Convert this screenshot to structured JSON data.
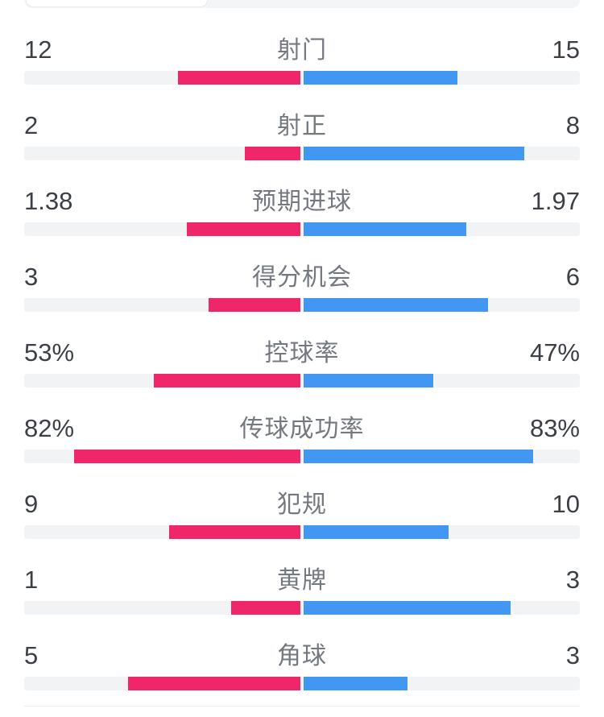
{
  "colors": {
    "home": "#F0266B",
    "away": "#4197F2",
    "track": "#F2F3F5",
    "value_text": "#3C4046",
    "label_text": "#74797F"
  },
  "stats": [
    {
      "label": "射门",
      "home": "12",
      "away": "15",
      "home_bar_pct": 44.4,
      "away_bar_pct": 55.6
    },
    {
      "label": "射正",
      "home": "2",
      "away": "8",
      "home_bar_pct": 20,
      "away_bar_pct": 80
    },
    {
      "label": "预期进球",
      "home": "1.38",
      "away": "1.97",
      "home_bar_pct": 41.2,
      "away_bar_pct": 58.8
    },
    {
      "label": "得分机会",
      "home": "3",
      "away": "6",
      "home_bar_pct": 33.3,
      "away_bar_pct": 66.7
    },
    {
      "label": "控球率",
      "home": "53%",
      "away": "47%",
      "home_bar_pct": 53,
      "away_bar_pct": 47
    },
    {
      "label": "传球成功率",
      "home": "82%",
      "away": "83%",
      "home_bar_pct": 82,
      "away_bar_pct": 83
    },
    {
      "label": "犯规",
      "home": "9",
      "away": "10",
      "home_bar_pct": 47.4,
      "away_bar_pct": 52.6
    },
    {
      "label": "黄牌",
      "home": "1",
      "away": "3",
      "home_bar_pct": 25,
      "away_bar_pct": 75
    },
    {
      "label": "角球",
      "home": "5",
      "away": "3",
      "home_bar_pct": 62.5,
      "away_bar_pct": 37.5
    }
  ],
  "chart_data": {
    "type": "bar",
    "orientation": "paired-horizontal-from-center",
    "categories": [
      "射门",
      "射正",
      "预期进球",
      "得分机会",
      "控球率",
      "传球成功率",
      "犯规",
      "黄牌",
      "角球"
    ],
    "series": [
      {
        "name": "home",
        "color": "#F0266B",
        "values": [
          12,
          2,
          1.38,
          3,
          53,
          82,
          9,
          1,
          5
        ]
      },
      {
        "name": "away",
        "color": "#4197F2",
        "values": [
          15,
          8,
          1.97,
          6,
          47,
          83,
          10,
          3,
          3
        ]
      }
    ],
    "percent_categories": [
      "控球率",
      "传球成功率"
    ],
    "legend": "none",
    "grid": false
  }
}
